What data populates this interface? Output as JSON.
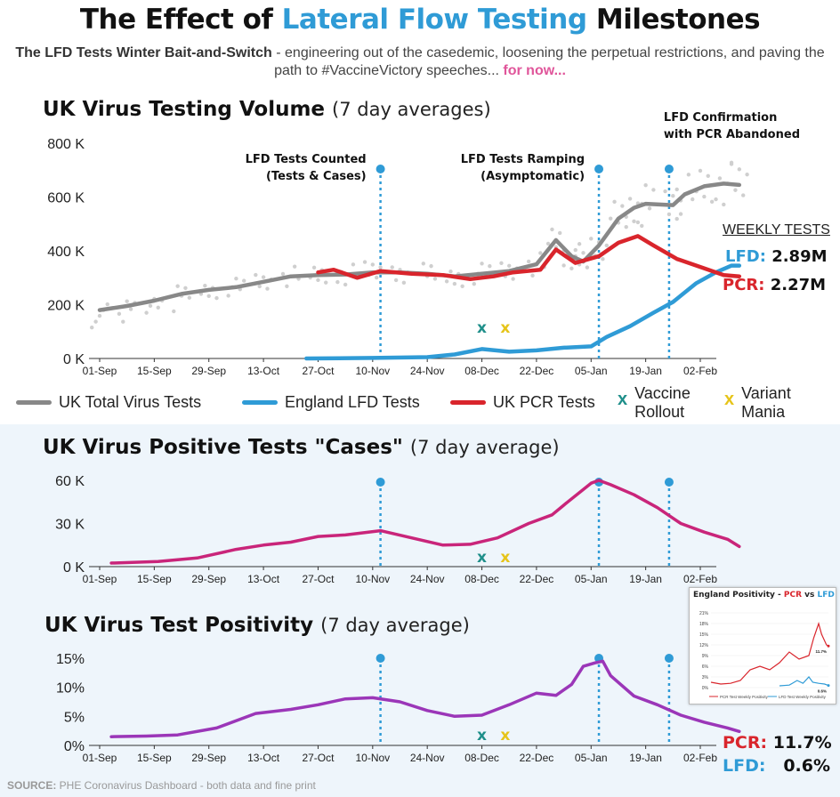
{
  "header": {
    "title_pre": "The Effect of",
    "title_highlight": "Lateral Flow Testing",
    "title_post": "Milestones",
    "subtitle_bold": "The LFD Tests Winter Bait-and-Switch",
    "subtitle_text": " - engineering out of the casedemic, loosening the perpetual restrictions, and paving the path to #VaccineVictory speeches... ",
    "subtitle_pink": "for now..."
  },
  "colors": {
    "total": "#888888",
    "total_points": "#cfcfcf",
    "lfd": "#2f9bd6",
    "pcr": "#d9252c",
    "cases": "#c9257a",
    "positivity": "#9b36b8",
    "vaccine": "#1f8f8a",
    "variant": "#e6c419",
    "milestone": "#2f9bd6"
  },
  "x_ticks": [
    "01-Sep",
    "15-Sep",
    "29-Sep",
    "13-Oct",
    "27-Oct",
    "10-Nov",
    "24-Nov",
    "08-Dec",
    "22-Dec",
    "05-Jan",
    "19-Jan",
    "02-Feb"
  ],
  "milestones": [
    {
      "day": 72,
      "label_lines": [
        "LFD Tests Counted",
        "(Tests & Cases)"
      ]
    },
    {
      "day": 128,
      "label_lines": [
        "LFD Tests Ramping",
        "(Asymptomatic)"
      ]
    },
    {
      "day": 146,
      "label_lines": [
        "LFD Confirmation",
        "with PCR Abandoned"
      ]
    }
  ],
  "markers": {
    "vaccine": {
      "day": 98,
      "symbol": "x"
    },
    "variant": {
      "day": 104,
      "symbol": "x"
    }
  },
  "legend": {
    "total": "UK Total Virus Tests",
    "lfd": "England LFD Tests",
    "pcr": "UK PCR Tests",
    "vaccine_lines": [
      "Vaccine",
      "Rollout"
    ],
    "variant_lines": [
      "Variant",
      "Mania"
    ]
  },
  "weekly": {
    "heading": "WEEKLY TESTS",
    "lfd_label": "LFD:",
    "lfd_value": "2.89M",
    "pcr_label": "PCR:",
    "pcr_value": "2.27M"
  },
  "positivity_summary": {
    "pcr_label": "PCR:",
    "pcr_value": "11.7%",
    "lfd_label": "LFD:",
    "lfd_value": "0.6%"
  },
  "inset": {
    "title_pre": "England Positivity - ",
    "title_pcr": "PCR",
    "title_mid": " vs ",
    "title_lfd": "LFD",
    "y_ticks": [
      "21%",
      "18%",
      "15%",
      "12%",
      "9%",
      "6%",
      "3%",
      "0%"
    ],
    "pcr_end_label": "11.7%",
    "lfd_end_label": "0.6%",
    "legend_pcr": "PCR Test Weekly Positivity",
    "legend_lfd": "LFD Test Weekly Positivity",
    "pcr": [
      [
        0,
        1.5
      ],
      [
        10,
        1
      ],
      [
        20,
        1.2
      ],
      [
        30,
        2
      ],
      [
        40,
        5
      ],
      [
        50,
        6
      ],
      [
        60,
        5
      ],
      [
        70,
        7
      ],
      [
        80,
        10
      ],
      [
        90,
        8
      ],
      [
        100,
        9
      ],
      [
        105,
        14
      ],
      [
        110,
        18
      ],
      [
        113,
        15
      ],
      [
        118,
        12
      ],
      [
        120,
        11.7
      ]
    ],
    "lfd": [
      [
        70,
        0.5
      ],
      [
        80,
        0.7
      ],
      [
        88,
        2
      ],
      [
        94,
        1.2
      ],
      [
        100,
        3
      ],
      [
        104,
        1.5
      ],
      [
        110,
        1.2
      ],
      [
        116,
        1
      ],
      [
        120,
        0.6
      ]
    ]
  },
  "source": {
    "label": "SOURCE:",
    "text": " PHE Coronavirus Dashboard - both data and fine print"
  },
  "chart_data": [
    {
      "type": "line",
      "title": "UK Virus Testing Volume",
      "title_suffix": "(7 day averages)",
      "x_unit": "days since 01-Sep-2020",
      "ylim": [
        0,
        800000
      ],
      "y_ticks": [
        "0 K",
        "200 K",
        "400 K",
        "600 K",
        "800 K"
      ],
      "series": [
        {
          "name": "UK Total Virus Tests",
          "points": [
            [
              0,
              180000
            ],
            [
              7,
              195000
            ],
            [
              14,
              215000
            ],
            [
              21,
              240000
            ],
            [
              28,
              255000
            ],
            [
              35,
              265000
            ],
            [
              42,
              285000
            ],
            [
              49,
              305000
            ],
            [
              56,
              310000
            ],
            [
              63,
              312000
            ],
            [
              70,
              320000
            ],
            [
              77,
              320000
            ],
            [
              84,
              315000
            ],
            [
              91,
              305000
            ],
            [
              98,
              315000
            ],
            [
              105,
              325000
            ],
            [
              112,
              350000
            ],
            [
              117,
              440000
            ],
            [
              121,
              380000
            ],
            [
              124,
              360000
            ],
            [
              128,
              420000
            ],
            [
              133,
              520000
            ],
            [
              137,
              560000
            ],
            [
              140,
              575000
            ],
            [
              147,
              570000
            ],
            [
              150,
              610000
            ],
            [
              155,
              640000
            ],
            [
              160,
              650000
            ],
            [
              164,
              645000
            ]
          ]
        },
        {
          "name": "England LFD Tests",
          "points": [
            [
              53,
              0
            ],
            [
              70,
              2000
            ],
            [
              84,
              5000
            ],
            [
              91,
              15000
            ],
            [
              98,
              35000
            ],
            [
              105,
              25000
            ],
            [
              112,
              30000
            ],
            [
              119,
              40000
            ],
            [
              126,
              45000
            ],
            [
              130,
              80000
            ],
            [
              136,
              120000
            ],
            [
              142,
              170000
            ],
            [
              147,
              210000
            ],
            [
              153,
              280000
            ],
            [
              158,
              320000
            ],
            [
              162,
              345000
            ],
            [
              164,
              345000
            ]
          ]
        },
        {
          "name": "UK PCR Tests",
          "points": [
            [
              56,
              320000
            ],
            [
              60,
              330000
            ],
            [
              66,
              300000
            ],
            [
              72,
              325000
            ],
            [
              80,
              315000
            ],
            [
              88,
              310000
            ],
            [
              95,
              295000
            ],
            [
              101,
              305000
            ],
            [
              106,
              320000
            ],
            [
              113,
              330000
            ],
            [
              117,
              405000
            ],
            [
              122,
              355000
            ],
            [
              128,
              380000
            ],
            [
              133,
              430000
            ],
            [
              138,
              455000
            ],
            [
              142,
              420000
            ],
            [
              148,
              370000
            ],
            [
              154,
              340000
            ],
            [
              160,
              310000
            ],
            [
              164,
              305000
            ]
          ]
        }
      ],
      "markers": [
        {
          "label": "Vaccine Rollout",
          "day": 98
        },
        {
          "label": "Variant Mania",
          "day": 104
        }
      ]
    },
    {
      "type": "line",
      "title": "UK Virus Positive Tests \"Cases\"",
      "title_suffix": "(7 day average)",
      "ylim": [
        0,
        60000
      ],
      "y_ticks": [
        "0 K",
        "30 K",
        "60 K"
      ],
      "series": [
        {
          "name": "",
          "points": [
            [
              3,
              2500
            ],
            [
              15,
              3500
            ],
            [
              25,
              6000
            ],
            [
              35,
              12000
            ],
            [
              42,
              15000
            ],
            [
              49,
              17000
            ],
            [
              56,
              21000
            ],
            [
              63,
              22000
            ],
            [
              72,
              25000
            ],
            [
              80,
              20000
            ],
            [
              88,
              15000
            ],
            [
              95,
              15500
            ],
            [
              102,
              20000
            ],
            [
              110,
              30000
            ],
            [
              116,
              36000
            ],
            [
              120,
              45000
            ],
            [
              126,
              58000
            ],
            [
              128,
              60000
            ],
            [
              131,
              57000
            ],
            [
              137,
              50000
            ],
            [
              143,
              41000
            ],
            [
              149,
              30000
            ],
            [
              155,
              24000
            ],
            [
              161,
              19000
            ],
            [
              164,
              14000
            ]
          ]
        }
      ]
    },
    {
      "type": "line",
      "title": "UK Virus Test Positivity",
      "title_suffix": "(7 day average)",
      "ylim": [
        0,
        15
      ],
      "y_ticks": [
        "0%",
        "5%",
        "10%",
        "15%"
      ],
      "series": [
        {
          "name": "",
          "points": [
            [
              3,
              1.5
            ],
            [
              12,
              1.6
            ],
            [
              20,
              1.8
            ],
            [
              30,
              3
            ],
            [
              40,
              5.5
            ],
            [
              49,
              6.2
            ],
            [
              56,
              7
            ],
            [
              63,
              8
            ],
            [
              70,
              8.2
            ],
            [
              77,
              7.5
            ],
            [
              84,
              6
            ],
            [
              91,
              5
            ],
            [
              98,
              5.2
            ],
            [
              105,
              7
            ],
            [
              112,
              9
            ],
            [
              117,
              8.6
            ],
            [
              121,
              10.5
            ],
            [
              124,
              13.6
            ],
            [
              127,
              14.2
            ],
            [
              129,
              14.5
            ],
            [
              131,
              12
            ],
            [
              137,
              8.5
            ],
            [
              143,
              7
            ],
            [
              149,
              5.2
            ],
            [
              155,
              4
            ],
            [
              161,
              3
            ],
            [
              164,
              2.4
            ]
          ]
        }
      ]
    }
  ]
}
